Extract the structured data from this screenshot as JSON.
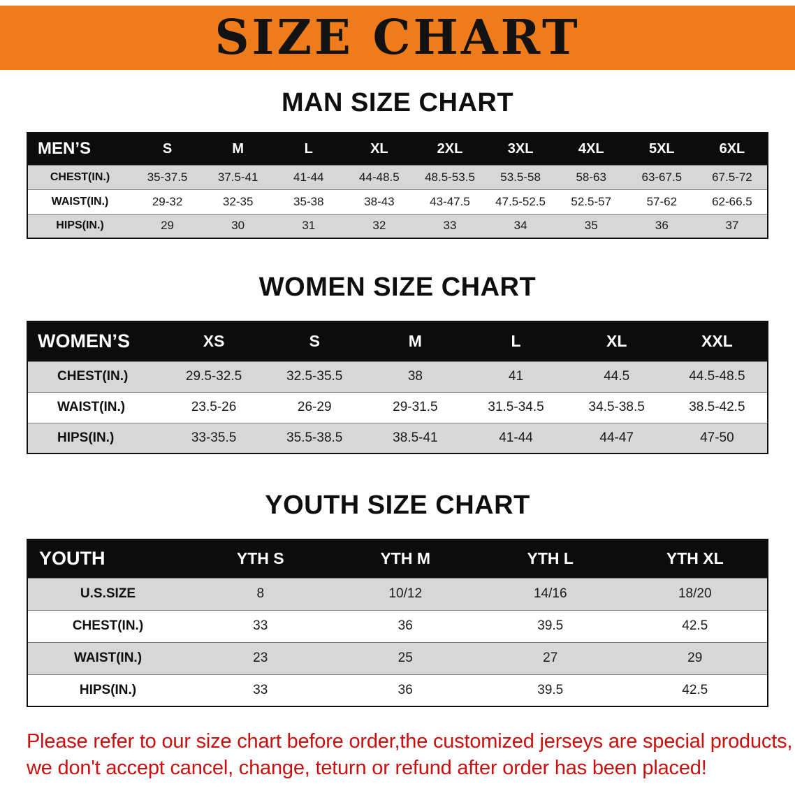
{
  "banner": {
    "title": "SIZE CHART",
    "bg_color": "#ef7c1a"
  },
  "men_chart": {
    "heading": "MAN SIZE CHART",
    "table": {
      "header": [
        "MEN’S",
        "S",
        "M",
        "L",
        "XL",
        "2XL",
        "3XL",
        "4XL",
        "5XL",
        "6XL"
      ],
      "rows": [
        {
          "label": "CHEST(IN.)",
          "values": [
            "35-37.5",
            "37.5-41",
            "41-44",
            "44-48.5",
            "48.5-53.5",
            "53.5-58",
            "58-63",
            "63-67.5",
            "67.5-72"
          ]
        },
        {
          "label": "WAIST(IN.)",
          "values": [
            "29-32",
            "32-35",
            "35-38",
            "38-43",
            "43-47.5",
            "47.5-52.5",
            "52.5-57",
            "57-62",
            "62-66.5"
          ]
        },
        {
          "label": "HIPS(IN.)",
          "values": [
            "29",
            "30",
            "31",
            "32",
            "33",
            "34",
            "35",
            "36",
            "37"
          ]
        }
      ]
    }
  },
  "women_chart": {
    "heading": "WOMEN SIZE CHART",
    "table": {
      "header": [
        "WOMEN’S",
        "XS",
        "S",
        "M",
        "L",
        "XL",
        "XXL"
      ],
      "rows": [
        {
          "label": "CHEST(IN.)",
          "values": [
            "29.5-32.5",
            "32.5-35.5",
            "38",
            "41",
            "44.5",
            "44.5-48.5"
          ]
        },
        {
          "label": "WAIST(IN.)",
          "values": [
            "23.5-26",
            "26-29",
            "29-31.5",
            "31.5-34.5",
            "34.5-38.5",
            "38.5-42.5"
          ]
        },
        {
          "label": "HIPS(IN.)",
          "values": [
            "33-35.5",
            "35.5-38.5",
            "38.5-41",
            "41-44",
            "44-47",
            "47-50"
          ]
        }
      ]
    }
  },
  "youth_chart": {
    "heading": "YOUTH SIZE CHART",
    "table": {
      "header": [
        "YOUTH",
        "YTH S",
        "YTH M",
        "YTH L",
        "YTH XL"
      ],
      "rows": [
        {
          "label": "U.S.SIZE",
          "values": [
            "8",
            "10/12",
            "14/16",
            "18/20"
          ]
        },
        {
          "label": "CHEST(IN.)",
          "values": [
            "33",
            "36",
            "39.5",
            "42.5"
          ]
        },
        {
          "label": "WAIST(IN.)",
          "values": [
            "23",
            "25",
            "27",
            "29"
          ]
        },
        {
          "label": "HIPS(IN.)",
          "values": [
            "33",
            "36",
            "39.5",
            "42.5"
          ]
        }
      ]
    }
  },
  "disclaimer": {
    "line1": "Please refer to our size chart before order,the customized jerseys are special products,",
    "line2": "we don't accept cancel, change, teturn or refund after order has been placed!",
    "text_color": "#c8100e"
  }
}
